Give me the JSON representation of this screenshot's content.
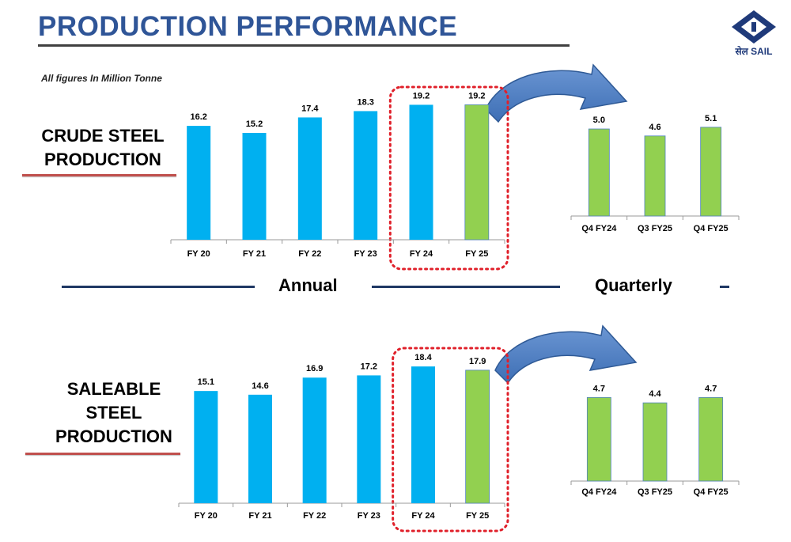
{
  "header": {
    "title": "PRODUCTION PERFORMANCE",
    "note": "All figures In Million Tonne",
    "logo_text": "सेल SAIL"
  },
  "labels": {
    "crude_line1": "CRUDE STEEL",
    "crude_line2": "PRODUCTION",
    "saleable_line1": "SALEABLE",
    "saleable_line2": "STEEL",
    "saleable_line3": "PRODUCTION",
    "annual": "Annual",
    "quarterly": "Quarterly"
  },
  "colors": {
    "annual_bar": "#00b0f0",
    "highlight_bar": "#92d050",
    "title": "#2f5597",
    "arrow": "#4f81bd",
    "highlight_box": "#e0202a",
    "underline": "#c0504d"
  },
  "chart_data": [
    {
      "type": "bar",
      "categories": [
        "FY 20",
        "FY 21",
        "FY 22",
        "FY 23",
        "FY 24",
        "FY 25"
      ],
      "values": [
        16.2,
        15.2,
        17.4,
        18.3,
        19.2,
        19.2
      ],
      "highlighted": [
        "FY 25"
      ],
      "boxed": [
        "FY 24",
        "FY 25"
      ],
      "ylim": [
        0,
        20.6
      ]
    },
    {
      "type": "bar",
      "categories": [
        "Q4 FY24",
        "Q3 FY25",
        "Q4 FY25"
      ],
      "values": [
        5.0,
        4.6,
        5.1
      ],
      "highlighted": [
        "Q4 FY24",
        "Q3 FY25",
        "Q4 FY25"
      ],
      "ylim": [
        0,
        5.5
      ]
    },
    {
      "type": "bar",
      "categories": [
        "FY 20",
        "FY 21",
        "FY 22",
        "FY 23",
        "FY 24",
        "FY 25"
      ],
      "values": [
        15.1,
        14.6,
        16.9,
        17.2,
        18.4,
        17.9
      ],
      "highlighted": [
        "FY 25"
      ],
      "boxed": [
        "FY 24",
        "FY 25"
      ],
      "ylim": [
        0,
        19.8
      ]
    },
    {
      "type": "bar",
      "categories": [
        "Q4 FY24",
        "Q3 FY25",
        "Q4 FY25"
      ],
      "values": [
        4.7,
        4.4,
        4.7
      ],
      "highlighted": [
        "Q4 FY24",
        "Q3 FY25",
        "Q4 FY25"
      ],
      "ylim": [
        0,
        5.25
      ]
    }
  ]
}
